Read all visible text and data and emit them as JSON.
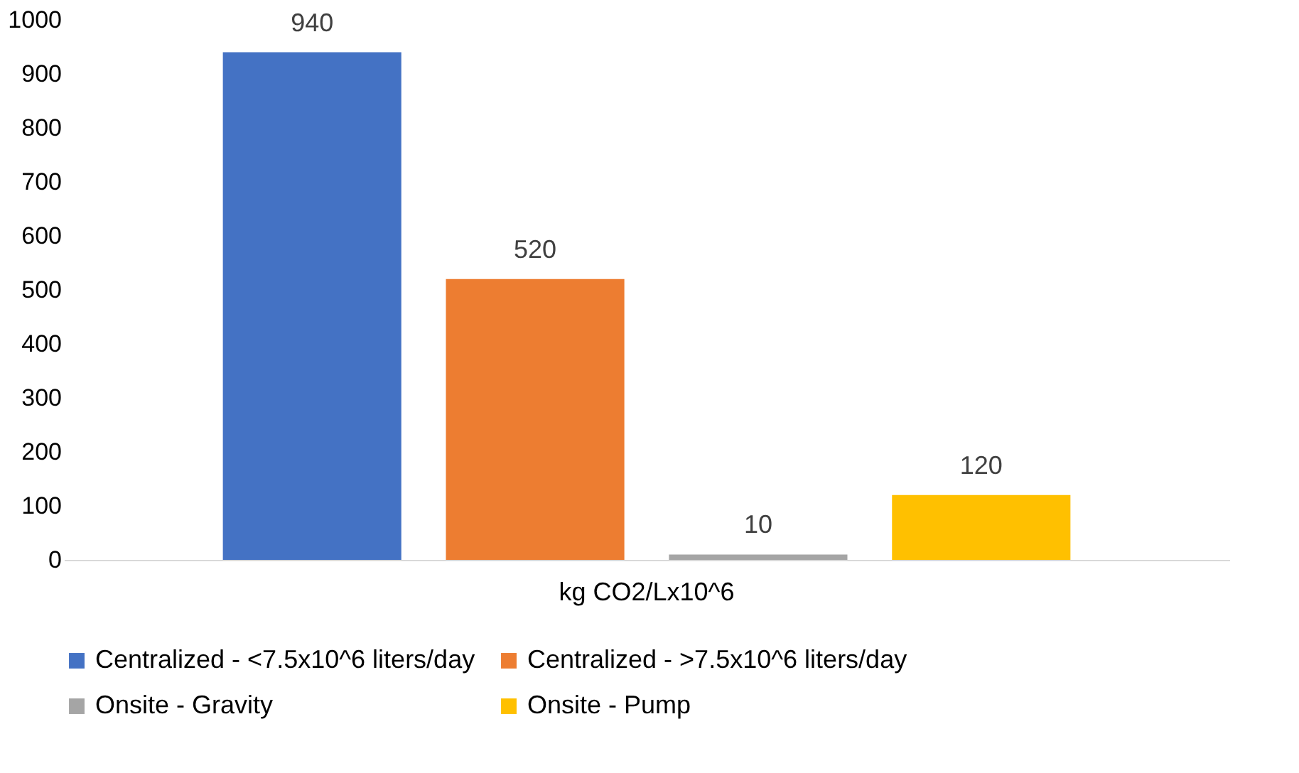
{
  "chart_data": {
    "type": "bar",
    "categories": [
      "kg CO2/Lx10^6"
    ],
    "series": [
      {
        "name": "Centralized - <7.5x10^6 liters/day",
        "color": "#4472c4",
        "values": [
          940
        ]
      },
      {
        "name": "Centralized - >7.5x10^6 liters/day",
        "color": "#ed7d31",
        "values": [
          520
        ]
      },
      {
        "name": "Onsite - Gravity",
        "color": "#a5a5a5",
        "values": [
          10
        ]
      },
      {
        "name": "Onsite - Pump",
        "color": "#ffc000",
        "values": [
          120
        ]
      }
    ],
    "ylim": [
      0,
      1000
    ],
    "yticks": [
      0,
      100,
      200,
      300,
      400,
      500,
      600,
      700,
      800,
      900,
      1000
    ],
    "grid": false,
    "legend": "bottom",
    "data_labels": true
  }
}
